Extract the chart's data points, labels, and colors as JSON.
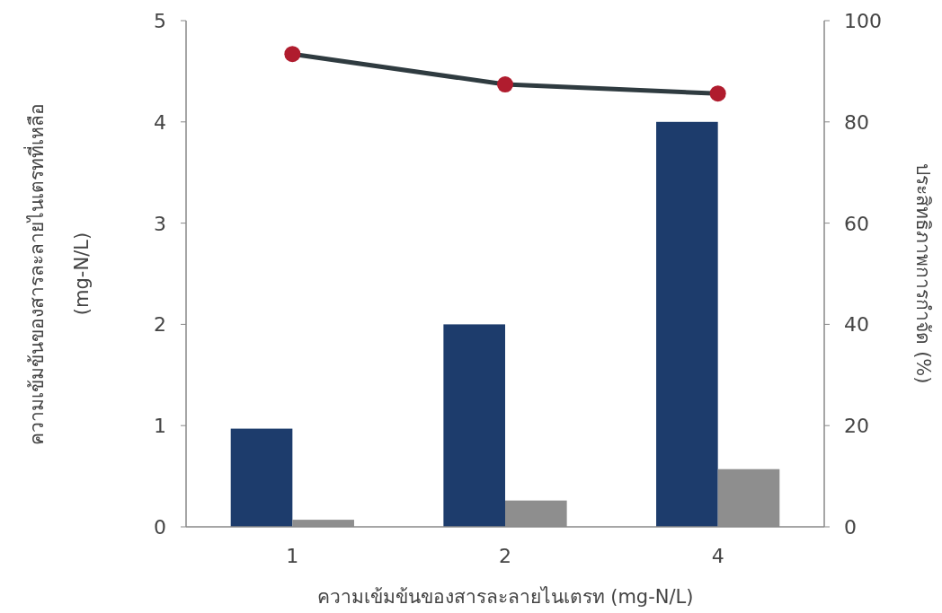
{
  "chart_data": {
    "type": "bar",
    "xlabel": "ความเข้มข้นของสารละลายไนเตรท (mg-N/L)",
    "ylabel": "ความเข้มข้นของสารละลายไนเตรทที่เหลือ (mg-N/L)",
    "y2label": "ประสิทธิภาพการกำจัด (%)",
    "categories": [
      "1",
      "2",
      "4"
    ],
    "series": [
      {
        "color": "#1d3c6c",
        "values": [
          0.97,
          2.0,
          4.0
        ]
      },
      {
        "color": "#8e8e8e",
        "values": [
          0.07,
          0.26,
          0.57
        ]
      },
      {
        "type": "line",
        "axis": "y2",
        "color": "#2f3b40",
        "marker": "circle",
        "values": [
          93.4,
          87.4,
          85.6
        ]
      }
    ],
    "ylim": [
      0,
      5
    ],
    "yticks": [
      0,
      1,
      2,
      3,
      4,
      5
    ],
    "y2lim": [
      0,
      100
    ],
    "y2ticks": [
      0,
      20,
      40,
      60,
      80,
      100
    ],
    "grid": false
  }
}
